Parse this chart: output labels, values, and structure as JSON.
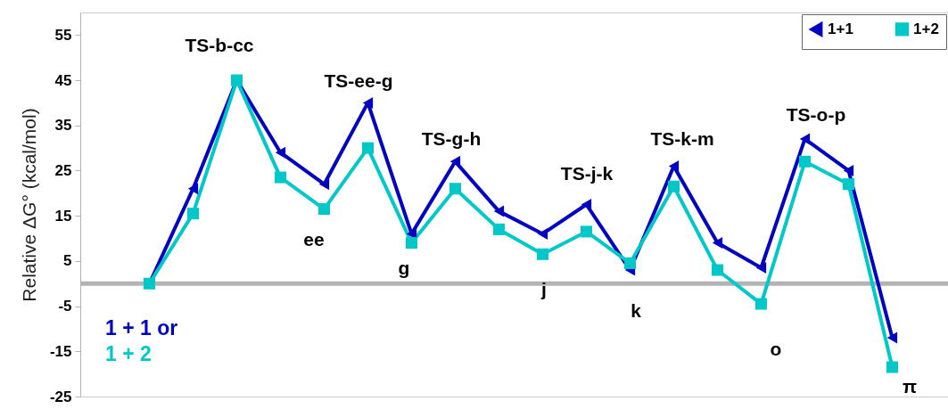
{
  "chart_data": {
    "type": "line",
    "ylabel": "Relative ΔG° (kcal/mol)",
    "categories": [
      null,
      null,
      null,
      null,
      null,
      null,
      null,
      null,
      null,
      null,
      null,
      null,
      null,
      null,
      null,
      null,
      null,
      null
    ],
    "ylim": [
      -25,
      60
    ],
    "yticks": [
      -25,
      -15,
      -5,
      5,
      15,
      25,
      35,
      45,
      55
    ],
    "legend": "top right",
    "series": [
      {
        "name": "1+1",
        "color": "#0000c0",
        "marker": "triangle",
        "values": [
          0,
          21,
          45,
          29,
          22,
          40,
          11,
          27,
          16,
          11,
          17.5,
          3,
          26,
          9,
          3.5,
          32,
          25,
          -12
        ]
      },
      {
        "name": "1+2",
        "color": "#00c8c8",
        "marker": "square",
        "values": [
          0,
          15.5,
          45,
          23.5,
          16.5,
          30,
          9,
          21,
          12,
          6.5,
          11.5,
          4.5,
          21.5,
          3,
          -4.5,
          27,
          22,
          -18.5
        ]
      }
    ],
    "ref_lines": [
      {
        "axis": "y",
        "value": 0,
        "color": "#b3b3b3"
      }
    ],
    "annotations": [
      "TS-b-cc",
      "TS-ee-g",
      "TS-g-h",
      "TS-j-k",
      "TS-k-m",
      "TS-o-p",
      "ee",
      "g",
      "j",
      "k",
      "o",
      "π",
      "1 + 1 or",
      "1 + 2"
    ]
  }
}
